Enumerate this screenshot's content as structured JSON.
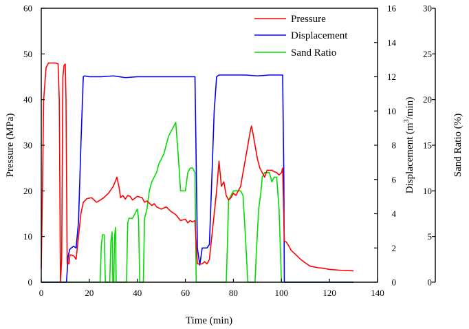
{
  "chart_data": {
    "type": "line",
    "title": "",
    "xlabel": "Time (min)",
    "xlim": [
      0,
      140
    ],
    "xticks": [
      0,
      20,
      40,
      60,
      80,
      100,
      120,
      140
    ],
    "grid": false,
    "legend_position": "top-right",
    "axes": {
      "left": {
        "label": "Pressure (MPa)",
        "lim": [
          0,
          60
        ],
        "ticks": [
          0,
          10,
          20,
          30,
          40,
          50,
          60
        ]
      },
      "right1": {
        "label_prefix": "Displacement (m",
        "label_sup": "3",
        "label_suffix": "/min)",
        "lim": [
          0,
          16
        ],
        "ticks": [
          0,
          2,
          4,
          6,
          8,
          10,
          12,
          14,
          16
        ]
      },
      "right2": {
        "label": "Sand Ratio (%)",
        "lim": [
          0,
          30
        ],
        "ticks": [
          0,
          5,
          10,
          15,
          20,
          25,
          30
        ]
      }
    },
    "series": [
      {
        "name": "Pressure",
        "axis": "left",
        "color": "#ff0000",
        "points": [
          [
            0,
            3
          ],
          [
            0.5,
            20
          ],
          [
            1,
            40
          ],
          [
            2,
            47
          ],
          [
            3,
            48
          ],
          [
            6,
            48
          ],
          [
            7,
            47.8
          ],
          [
            7.5,
            40
          ],
          [
            8,
            0
          ],
          [
            8.5,
            5
          ],
          [
            9,
            45
          ],
          [
            9.5,
            47.5
          ],
          [
            10,
            47.8
          ],
          [
            10.3,
            40
          ],
          [
            10.8,
            4
          ],
          [
            11.5,
            4
          ],
          [
            12,
            6
          ],
          [
            13.5,
            5.8
          ],
          [
            14.5,
            5
          ],
          [
            15.5,
            10
          ],
          [
            16.5,
            15
          ],
          [
            17.5,
            17.5
          ],
          [
            19,
            18.3
          ],
          [
            21,
            18.5
          ],
          [
            22,
            18
          ],
          [
            23,
            17.5
          ],
          [
            24,
            17.8
          ],
          [
            26,
            18.5
          ],
          [
            28,
            19.5
          ],
          [
            30,
            21
          ],
          [
            31.5,
            23
          ],
          [
            32.5,
            20.5
          ],
          [
            33,
            18.5
          ],
          [
            34,
            19
          ],
          [
            35,
            18.2
          ],
          [
            36,
            19
          ],
          [
            37,
            18.8
          ],
          [
            38,
            18
          ],
          [
            40,
            18.8
          ],
          [
            42,
            18.5
          ],
          [
            43,
            17.5
          ],
          [
            44,
            17.8
          ],
          [
            46,
            16.8
          ],
          [
            47,
            17.2
          ],
          [
            48,
            16.5
          ],
          [
            50,
            16
          ],
          [
            52,
            16.5
          ],
          [
            54,
            15.5
          ],
          [
            56,
            14.8
          ],
          [
            58,
            13.5
          ],
          [
            60,
            13.8
          ],
          [
            61,
            13
          ],
          [
            62,
            13.5
          ],
          [
            63,
            13.2
          ],
          [
            64,
            13.5
          ],
          [
            64.5,
            8
          ],
          [
            65,
            4
          ],
          [
            67,
            4
          ],
          [
            68,
            4.5
          ],
          [
            69,
            4
          ],
          [
            70,
            5
          ],
          [
            71,
            10
          ],
          [
            72,
            15
          ],
          [
            73,
            20
          ],
          [
            74,
            26.5
          ],
          [
            75,
            21
          ],
          [
            76,
            22
          ],
          [
            77,
            19
          ],
          [
            78,
            18
          ],
          [
            79,
            18.5
          ],
          [
            80,
            19.5
          ],
          [
            81,
            19
          ],
          [
            82,
            20
          ],
          [
            83,
            21
          ],
          [
            84,
            24
          ],
          [
            85,
            27
          ],
          [
            86,
            30
          ],
          [
            87,
            33
          ],
          [
            87.5,
            34.2
          ],
          [
            88,
            33
          ],
          [
            89,
            30
          ],
          [
            90,
            27
          ],
          [
            91,
            25
          ],
          [
            92,
            24
          ],
          [
            93,
            23
          ],
          [
            94,
            24.5
          ],
          [
            96,
            24.5
          ],
          [
            97,
            24.2
          ],
          [
            98,
            24
          ],
          [
            99,
            23.5
          ],
          [
            100,
            24
          ],
          [
            100.5,
            25
          ],
          [
            100.8,
            18
          ],
          [
            101.2,
            9
          ],
          [
            102,
            8.8
          ],
          [
            103,
            8
          ],
          [
            104,
            7
          ],
          [
            106,
            6
          ],
          [
            108,
            5
          ],
          [
            110,
            4.2
          ],
          [
            112,
            3.5
          ],
          [
            115,
            3.2
          ],
          [
            118,
            3
          ],
          [
            120,
            2.8
          ],
          [
            125,
            2.6
          ],
          [
            130,
            2.5
          ]
        ]
      },
      {
        "name": "Displacement",
        "axis": "right1",
        "color": "#0000ff",
        "points": [
          [
            0,
            0
          ],
          [
            10.5,
            0
          ],
          [
            11.2,
            1.5
          ],
          [
            11.8,
            1.9
          ],
          [
            12.5,
            2
          ],
          [
            13.5,
            2.1
          ],
          [
            14.5,
            2
          ],
          [
            15.5,
            3.5
          ],
          [
            16.5,
            8
          ],
          [
            17.5,
            12
          ],
          [
            18,
            12.05
          ],
          [
            20,
            12
          ],
          [
            25,
            12
          ],
          [
            30,
            12.05
          ],
          [
            35,
            11.95
          ],
          [
            40,
            12
          ],
          [
            45,
            12
          ],
          [
            50,
            12
          ],
          [
            55,
            12
          ],
          [
            60,
            12
          ],
          [
            64,
            12
          ],
          [
            64.5,
            7
          ],
          [
            65,
            2
          ],
          [
            66,
            1
          ],
          [
            67,
            2
          ],
          [
            69,
            2
          ],
          [
            70,
            2.2
          ],
          [
            71,
            6
          ],
          [
            72,
            10
          ],
          [
            73,
            12
          ],
          [
            74,
            12.1
          ],
          [
            80,
            12.1
          ],
          [
            85,
            12.1
          ],
          [
            90,
            12.05
          ],
          [
            95,
            12.1
          ],
          [
            100.5,
            12.1
          ],
          [
            101,
            6
          ],
          [
            101.2,
            0
          ],
          [
            130,
            0
          ]
        ]
      },
      {
        "name": "Sand Ratio",
        "axis": "right2",
        "color": "#00dd00",
        "points": [
          [
            0,
            0
          ],
          [
            24.5,
            0
          ],
          [
            25,
            4
          ],
          [
            25.5,
            5.2
          ],
          [
            26.2,
            5.2
          ],
          [
            26.7,
            0
          ],
          [
            28.5,
            0
          ],
          [
            29,
            4.5
          ],
          [
            29.5,
            5.5
          ],
          [
            29.8,
            0
          ],
          [
            30.2,
            0
          ],
          [
            30.5,
            5
          ],
          [
            30.9,
            6
          ],
          [
            31.2,
            0
          ],
          [
            35.5,
            0
          ],
          [
            36,
            6.5
          ],
          [
            36.5,
            7
          ],
          [
            38,
            7
          ],
          [
            39,
            7.5
          ],
          [
            40,
            8
          ],
          [
            40.5,
            7
          ],
          [
            41,
            0
          ],
          [
            42.5,
            0
          ],
          [
            43,
            7
          ],
          [
            44,
            8
          ],
          [
            45,
            10
          ],
          [
            46,
            11
          ],
          [
            48,
            12
          ],
          [
            49,
            13
          ],
          [
            50,
            13.5
          ],
          [
            51,
            14
          ],
          [
            52,
            15
          ],
          [
            53,
            16
          ],
          [
            54,
            16.5
          ],
          [
            55,
            17
          ],
          [
            56,
            17.5
          ],
          [
            57,
            14
          ],
          [
            58,
            10
          ],
          [
            59,
            10
          ],
          [
            60,
            10
          ],
          [
            61,
            12
          ],
          [
            62,
            12.5
          ],
          [
            63,
            12.5
          ],
          [
            64,
            12
          ],
          [
            64.5,
            0
          ],
          [
            77,
            0
          ],
          [
            77.5,
            4
          ],
          [
            78,
            9
          ],
          [
            79,
            9.5
          ],
          [
            80,
            10
          ],
          [
            82,
            10
          ],
          [
            83,
            10
          ],
          [
            84,
            9.5
          ],
          [
            85,
            5
          ],
          [
            86,
            0
          ],
          [
            89,
            0
          ],
          [
            89.5,
            3
          ],
          [
            90.5,
            8
          ],
          [
            91.5,
            10
          ],
          [
            92,
            11.5
          ],
          [
            93,
            12
          ],
          [
            94,
            12
          ],
          [
            95,
            12
          ],
          [
            96,
            11
          ],
          [
            97,
            11.5
          ],
          [
            98,
            11.5
          ],
          [
            99,
            8
          ],
          [
            100,
            0
          ],
          [
            130,
            0
          ]
        ]
      }
    ]
  }
}
